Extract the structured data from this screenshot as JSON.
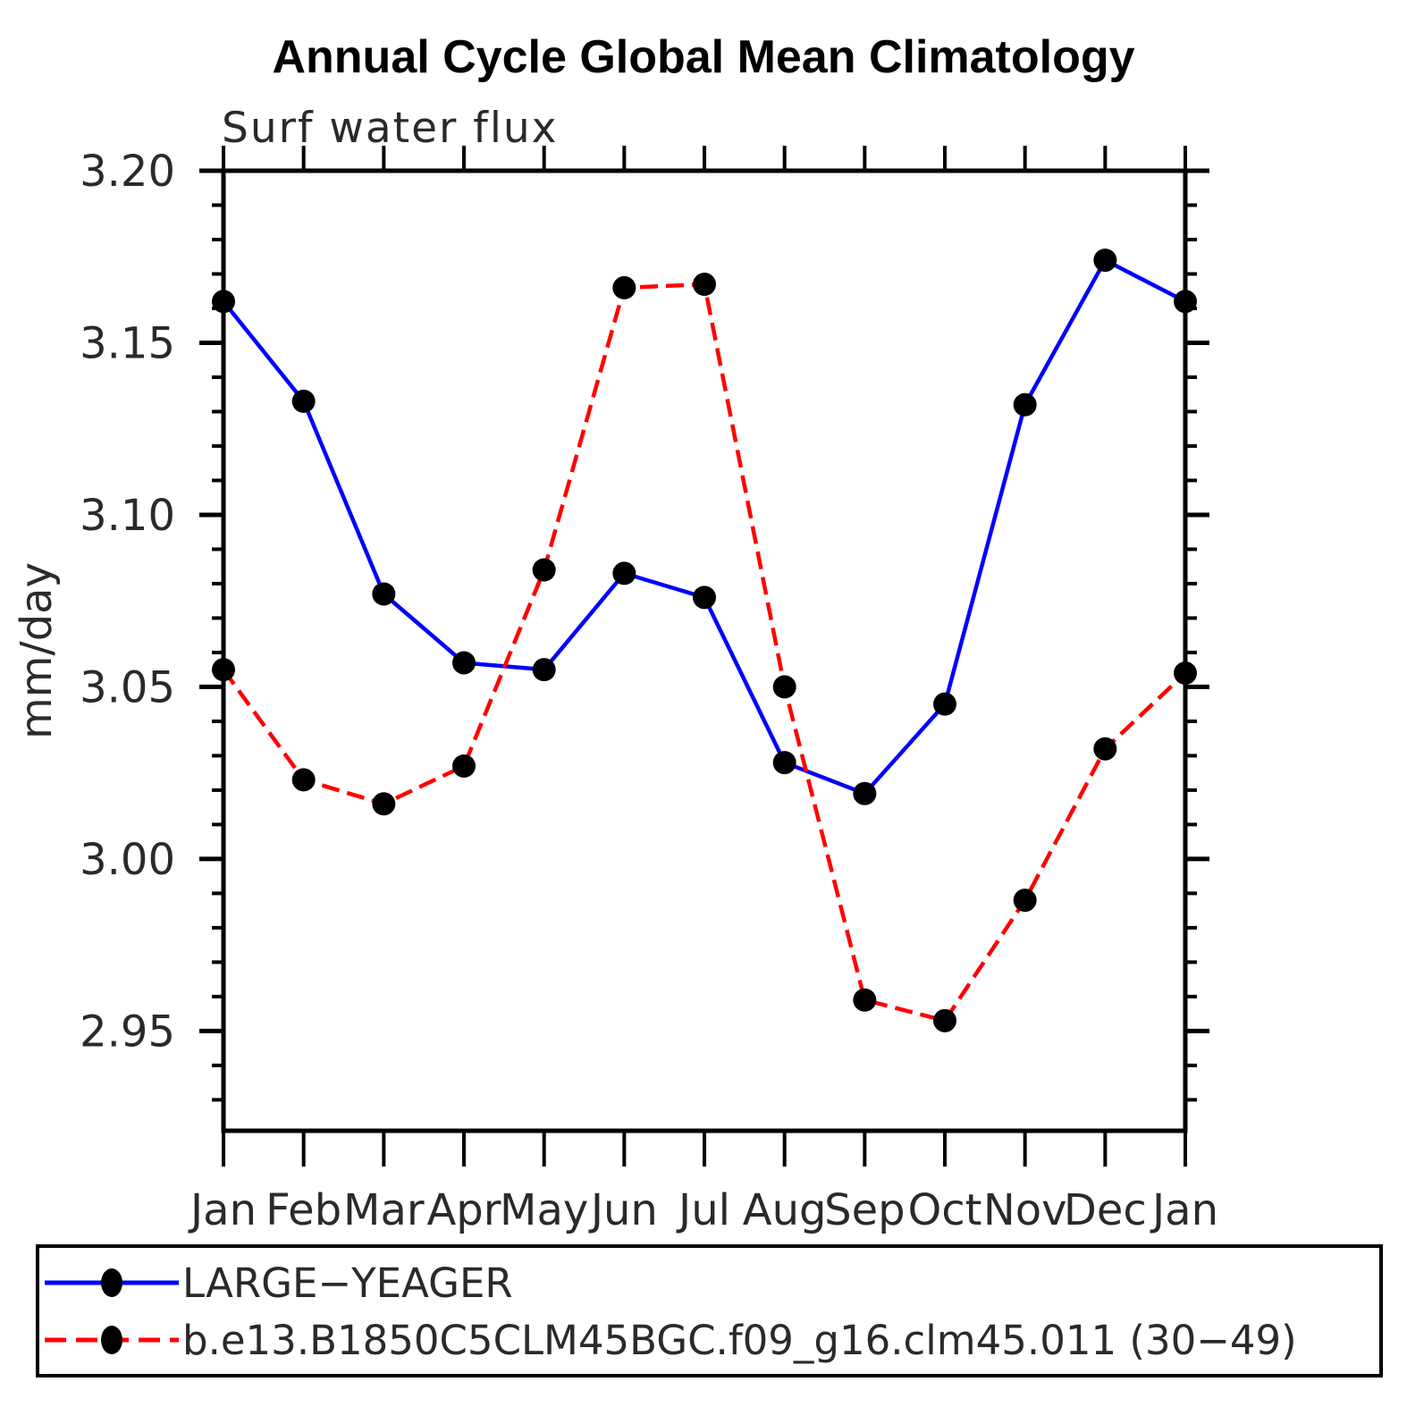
{
  "header": {
    "title": "Annual Cycle Global Mean Climatology"
  },
  "chart_data": {
    "type": "line",
    "title": "Annual Cycle Global Mean Climatology",
    "subtitle": "Surf water flux",
    "ylabel": "mm/day",
    "xlabel": "",
    "x_categories": [
      "Jan",
      "Feb",
      "Mar",
      "Apr",
      "May",
      "Jun",
      "Jul",
      "Aug",
      "Sep",
      "Oct",
      "Nov",
      "Dec",
      "Jan"
    ],
    "ylim": [
      2.921,
      3.2
    ],
    "yticks_major": [
      3.2,
      3.15,
      3.1,
      3.05,
      3.0,
      2.95
    ],
    "ytick_labels": [
      "3.20",
      "3.15",
      "3.10",
      "3.05",
      "3.00",
      "2.95"
    ],
    "yminor_step": 0.01,
    "grid": false,
    "legend_position": "bottom-box",
    "axis_color": "#000000",
    "text_color": "#2a2a2a",
    "background": "#ffffff",
    "series": [
      {
        "name": "LARGE−YEAGER",
        "color": "#0000ff",
        "line_style": "solid",
        "marker": "circle",
        "marker_color": "#000000",
        "values": [
          3.162,
          3.133,
          3.077,
          3.057,
          3.055,
          3.083,
          3.076,
          3.028,
          3.019,
          3.045,
          3.132,
          3.174,
          3.162
        ]
      },
      {
        "name": "b.e13.B1850C5CLM45BGC.f09_g16.clm45.011 (30−49)",
        "color": "#ff0000",
        "line_style": "dashed",
        "marker": "circle",
        "marker_color": "#000000",
        "values": [
          3.055,
          3.023,
          3.016,
          3.027,
          3.084,
          3.166,
          3.167,
          3.05,
          2.959,
          2.953,
          2.988,
          3.032,
          3.054
        ]
      }
    ]
  }
}
